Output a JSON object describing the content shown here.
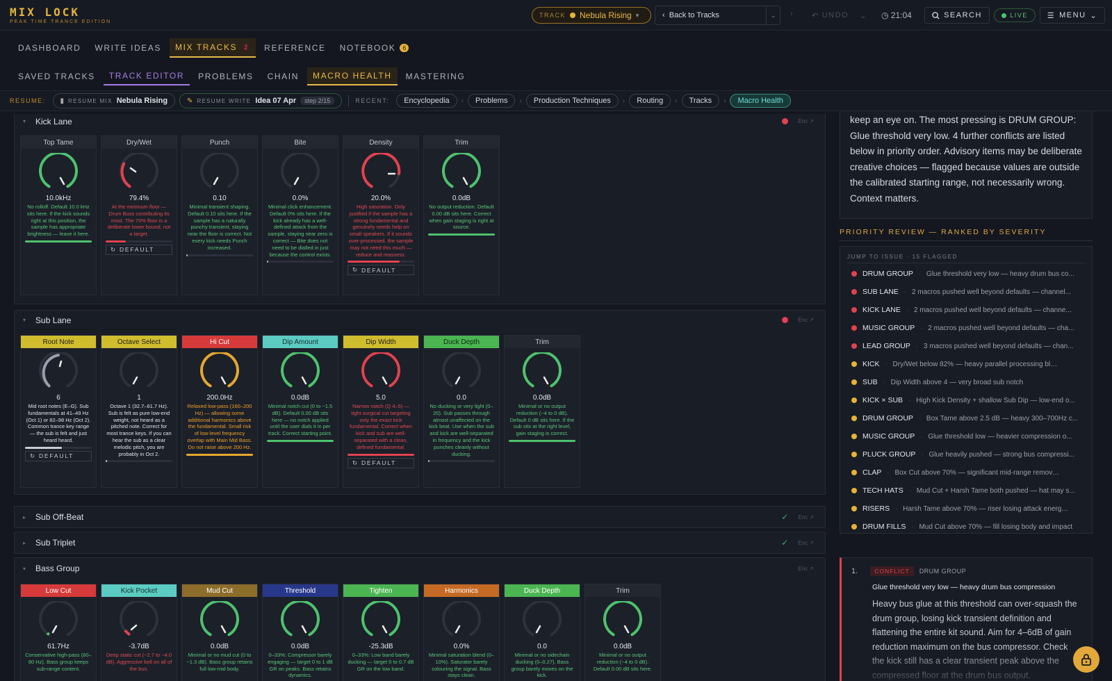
{
  "header": {
    "logo": "MIX LOCK",
    "tagline": "PEAK TIME TRANCE EDITION",
    "track_label": "TRACK",
    "track_name": "Nebula Rising",
    "back_label": "Back to Tracks",
    "undo_label": "UNDO",
    "clock": "21:04",
    "search_label": "SEARCH",
    "live_label": "LIVE",
    "menu_label": "MENU"
  },
  "nav_main": [
    {
      "label": "DASHBOARD"
    },
    {
      "label": "WRITE IDEAS"
    },
    {
      "label": "MIX TRACKS",
      "badge": "2"
    },
    {
      "label": "REFERENCE"
    },
    {
      "label": "NOTEBOOK",
      "badge": "6"
    }
  ],
  "nav_sub": [
    {
      "label": "SAVED TRACKS"
    },
    {
      "label": "TRACK EDITOR"
    },
    {
      "label": "PROBLEMS"
    },
    {
      "label": "CHAIN"
    },
    {
      "label": "MACRO HEALTH"
    },
    {
      "label": "MASTERING"
    }
  ],
  "resume": {
    "label": "RESUME:",
    "mix_small": "RESUME MIX",
    "mix_name": "Nebula Rising",
    "write_small": "RESUME WRITE",
    "write_name": "Idea 07 Apr",
    "write_step": "step 2/15",
    "recent_label": "RECENT:",
    "recent": [
      "Encyclopedia",
      "Problems",
      "Production Techniques",
      "Routing",
      "Tracks",
      "Macro Health"
    ]
  },
  "enc": "Enc ↗",
  "default_label": "DEFAULT",
  "lanes": [
    {
      "name": "Kick Lane",
      "macros": [
        {
          "label": "Top Tame",
          "value": "10.0kHz",
          "desc": "No rolloff. Default 10.0 kHz sits here. If the kick sounds right at this position, the sample has appropriate brightness — leave it here."
        },
        {
          "label": "Dry/Wet",
          "value": "79.4%",
          "desc": "At the minimum floor — Drum Buss contributing its most. The 70% floor is a deliberate lower bound, not a target."
        },
        {
          "label": "Punch",
          "value": "0.10",
          "desc": "Minimal transient shaping. Default 0.10 sits here. If the sample has a naturally punchy transient, staying near the floor is correct. Not every kick needs Punch increased."
        },
        {
          "label": "Bite",
          "value": "0.0%",
          "desc": "Minimal click enhancement. Default 0% sits here. If the kick already has a well-defined attack from the sample, staying near zero is correct — Bite does not need to be dialled in just because the control exists."
        },
        {
          "label": "Density",
          "value": "20.0%",
          "desc": "High saturation. Only justified if the sample has a strong fundamental and genuinely needs help on small speakers. If it sounds over-processed, the sample may not need this much — reduce and reassess."
        },
        {
          "label": "Trim",
          "value": "0.0dB",
          "desc": "No output reduction. Default 0.00 dB sits here. Correct when gain staging is right at source."
        }
      ]
    },
    {
      "name": "Sub Lane",
      "macros": [
        {
          "label": "Root Note",
          "value": "6",
          "desc": "Mid root notes (E–G). Sub fundamentals at 41–49 Hz (Oct 1) or 82–98 Hz (Oct 2). Common trance key range — the sub is felt and just heard heard."
        },
        {
          "label": "Octave Select",
          "value": "1",
          "desc": "Octave 1 (32.7–61.7 Hz). Sub is felt as pure low-end weight, not heard as a pitched note. Correct for most trance keys. If you can hear the sub as a clear melodic pitch, you are probably in Oct 2."
        },
        {
          "label": "Hi Cut",
          "value": "200.0Hz",
          "desc": "Relaxed low-pass (160–200 Hz) — allowing some additional harmonics above the fundamental. Small risk of low-level frequency overlap with Main Mid Bass. Do not raise above 200 Hz."
        },
        {
          "label": "Dip Amount",
          "value": "0.0dB",
          "desc": "Minimal notch cut (0 to −1.5 dB). Default 0.00 dB sits here — no notch applied until the user dials it in per track. Correct starting point."
        },
        {
          "label": "Dip Width",
          "value": "5.0",
          "desc": "Narrow notch (Q 4–5) — tight surgical cut targeting only the exact kick fundamental. Correct when kick and sub are well-separated with a clean, defined fundamental."
        },
        {
          "label": "Duck Depth",
          "value": "0.0",
          "desc": "No ducking or very light (0–20). Sub passes through almost unaffected on the kick beat. Use when the sub and kick are well-separated in frequency and the kick punches cleanly without ducking."
        },
        {
          "label": "Trim",
          "value": "0.0dB",
          "desc": "Minimal or no output reduction (−4 to 0 dB). Default 0 dB sits here. If the sub sits at the right level, gain staging is correct."
        }
      ]
    },
    {
      "name": "Sub Off-Beat"
    },
    {
      "name": "Sub Triplet"
    },
    {
      "name": "Bass Group",
      "macros": [
        {
          "label": "Low Cut",
          "value": "61.7Hz",
          "desc": "Conservative high-pass (60–80 Hz). Bass group keeps sub-range content."
        },
        {
          "label": "Kick Pocket",
          "value": "-3.7dB",
          "desc": "Deep static cut (−2.7 to −4.0 dB). Aggressive bell on all of the bus."
        },
        {
          "label": "Mud Cut",
          "value": "0.0dB",
          "desc": "Minimal or no mud cut (0 to −1.3 dB). Bass group retains full low-mid body."
        },
        {
          "label": "Threshold",
          "value": "0.0dB",
          "desc": "0–33%: Compressor barely engaging — target 0 to 1 dB GR on peaks. Bass retains dynamics."
        },
        {
          "label": "Tighten",
          "value": "-25.3dB",
          "desc": "0–33%: Low band barely ducking — target 0 to 0.7 dB GR on the low band."
        },
        {
          "label": "Harmonics",
          "value": "0.0%",
          "desc": "Minimal saturation blend (0–10%). Saturator barely colouring the signal. Bass stays clean."
        },
        {
          "label": "Duck Depth",
          "value": "0.0",
          "desc": "Minimal or no sidechain ducking (0–0.27). Bass group barely moves on the kick."
        },
        {
          "label": "Trim",
          "value": "0.0dB",
          "desc": "Minimal or no output reduction (−4 to 0 dB). Default 0.00 dB sits here."
        }
      ]
    }
  ],
  "right": {
    "intro": "keep an eye on. The most pressing is DRUM GROUP: Glue threshold very low. 4 further conflicts are listed below in priority order. Advisory items may be deliberate creative choices — flagged because values are outside the calibrated starting range, not necessarily wrong. Context matters.",
    "priority_heading": "PRIORITY REVIEW — RANKED BY SEVERITY",
    "jump_label": "JUMP TO ISSUE · 15 FLAGGED",
    "items": [
      {
        "name": "DRUM GROUP",
        "desc": "Glue threshold very low — heavy drum bus co...",
        "sev": "red"
      },
      {
        "name": "SUB LANE",
        "desc": "2 macros pushed well beyond defaults — channel...",
        "sev": "red"
      },
      {
        "name": "KICK LANE",
        "desc": "2 macros pushed well beyond defaults — channe...",
        "sev": "red"
      },
      {
        "name": "MUSIC GROUP",
        "desc": "2 macros pushed well beyond defaults — cha...",
        "sev": "red"
      },
      {
        "name": "LEAD GROUP",
        "desc": "3 macros pushed well beyond defaults — chan...",
        "sev": "red"
      },
      {
        "name": "KICK",
        "desc": "Dry/Wet below 82% — heavy parallel processing blend",
        "sev": "yellow"
      },
      {
        "name": "SUB",
        "desc": "Dip Width above 4 — very broad sub notch",
        "sev": "yellow"
      },
      {
        "name": "KICK × SUB",
        "desc": "High Kick Density + shallow Sub Dip — low-end o...",
        "sev": "yellow"
      },
      {
        "name": "DRUM GROUP",
        "desc": "Box Tame above 2.5 dB — heavy 300–700Hz c...",
        "sev": "yellow"
      },
      {
        "name": "MUSIC GROUP",
        "desc": "Glue threshold low — heavier compression o...",
        "sev": "yellow"
      },
      {
        "name": "PLUCK GROUP",
        "desc": "Glue heavily pushed — strong bus compressi...",
        "sev": "yellow"
      },
      {
        "name": "CLAP",
        "desc": "Box Cut above 70% — significant mid-range removed f...",
        "sev": "yellow"
      },
      {
        "name": "TECH HATS",
        "desc": "Mud Cut + Harsh Tame both pushed — hat may s...",
        "sev": "yellow"
      },
      {
        "name": "RISERS",
        "desc": "Harsh Tame above 70% — riser losing attack energy ...",
        "sev": "yellow"
      },
      {
        "name": "DRUM FILLS",
        "desc": "Mud Cut above 70% — fill losing body and impact",
        "sev": "yellow"
      }
    ],
    "issue": {
      "num": "1.",
      "tag": "CONFLICT",
      "group": "DRUM GROUP",
      "title": "Glue threshold very low — heavy drum bus compression",
      "body": "Heavy bus glue at this threshold can over-squash the drum group, losing kick transient definition and flattening the entire kit sound. Aim for 4–6dB of gain reduction maximum on the bus compressor. Check the kick still has a clear transient peak above the compressed floor at the drum bus output."
    }
  },
  "colors": {
    "gold": "#e9b94a",
    "red": "#e0424f",
    "yellow": "#e6b23a",
    "green": "#4ec26e",
    "teal": "#6ce0d2",
    "purple": "#a77de8"
  }
}
